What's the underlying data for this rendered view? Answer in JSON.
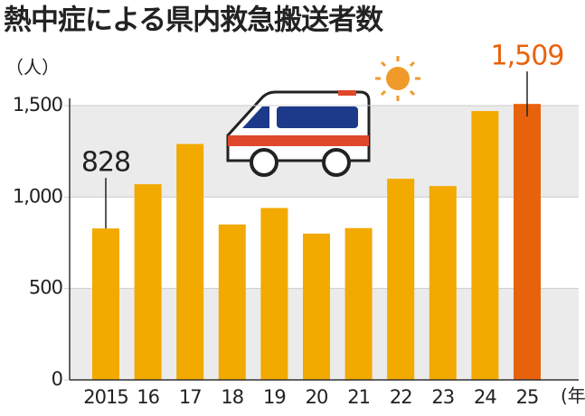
{
  "chart_data": {
    "type": "bar",
    "title": "熱中症による県内救急搬送者数",
    "y_unit": "（人）",
    "x_unit": "(年)",
    "categories": [
      "2015",
      "16",
      "17",
      "18",
      "19",
      "20",
      "21",
      "22",
      "23",
      "24",
      "25"
    ],
    "values": [
      828,
      1070,
      1290,
      850,
      940,
      800,
      830,
      1100,
      1060,
      1470,
      1509
    ],
    "value_labels": [
      "828",
      null,
      null,
      null,
      null,
      null,
      null,
      null,
      null,
      null,
      "1,509"
    ],
    "color": "#f2a900",
    "highlight_color": "#e8620c",
    "highlight_index": 10,
    "ylim": [
      0,
      1500
    ],
    "yticks": [
      0,
      500,
      {
        "value": 1000,
        "label": "1,000"
      },
      {
        "value": 1500,
        "label": "1,500"
      }
    ],
    "grid": true
  }
}
